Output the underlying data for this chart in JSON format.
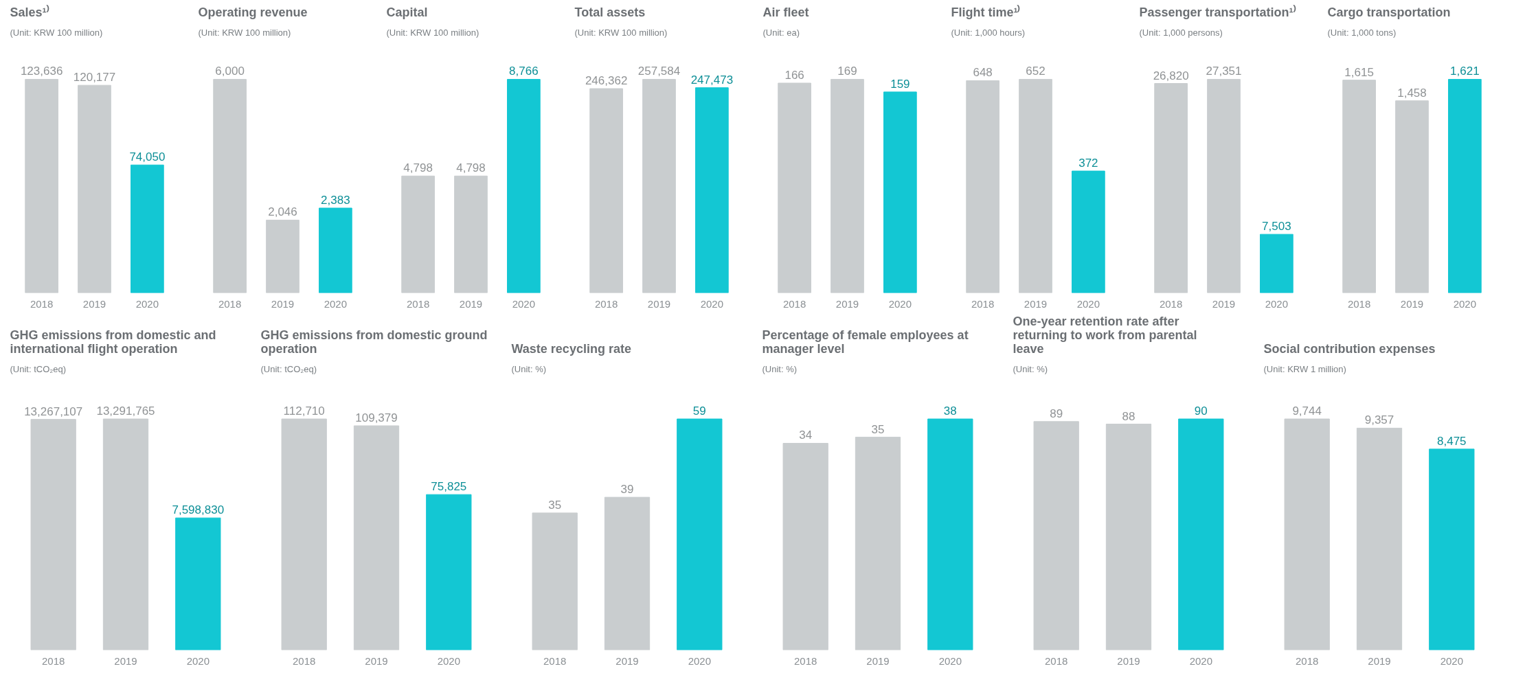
{
  "chart_data": [
    {
      "type": "bar",
      "title": "Sales¹⁾",
      "subtitle": "(Unit: KRW 100 million)",
      "categories": [
        "2018",
        "2019",
        "2020"
      ],
      "values": [
        123636,
        120177,
        74050
      ],
      "colors": [
        "#c9cdcf",
        "#c9cdcf",
        "#13c7d3"
      ],
      "value_labels": [
        "123,636",
        "120,177",
        "74,050"
      ]
    },
    {
      "type": "bar",
      "title": "Operating revenue",
      "subtitle": "(Unit: KRW 100 million)",
      "categories": [
        "2018",
        "2019",
        "2020"
      ],
      "values": [
        6000,
        2046,
        2383
      ],
      "colors": [
        "#c9cdcf",
        "#c9cdcf",
        "#13c7d3"
      ],
      "value_labels": [
        "6,000",
        "2,046",
        "2,383"
      ]
    },
    {
      "type": "bar",
      "title": "Capital",
      "subtitle": "(Unit: KRW 100 million)",
      "categories": [
        "2018",
        "2019",
        "2020"
      ],
      "values": [
        4798,
        4798,
        8766
      ],
      "colors": [
        "#c9cdcf",
        "#c9cdcf",
        "#13c7d3"
      ],
      "value_labels": [
        "4,798",
        "4,798",
        "8,766"
      ]
    },
    {
      "type": "bar",
      "title": "Total assets",
      "subtitle": "(Unit: KRW 100 million)",
      "categories": [
        "2018",
        "2019",
        "2020"
      ],
      "values": [
        246362,
        257584,
        247473
      ],
      "colors": [
        "#c9cdcf",
        "#c9cdcf",
        "#13c7d3"
      ],
      "value_labels": [
        "246,362",
        "257,584",
        "247,473"
      ]
    },
    {
      "type": "bar",
      "title": "Air fleet",
      "subtitle": "(Unit: ea)",
      "categories": [
        "2018",
        "2019",
        "2020"
      ],
      "values": [
        166,
        169,
        159
      ],
      "colors": [
        "#c9cdcf",
        "#c9cdcf",
        "#13c7d3"
      ],
      "value_labels": [
        "166",
        "169",
        "159"
      ]
    },
    {
      "type": "bar",
      "title": "Flight time¹⁾",
      "subtitle": "(Unit: 1,000 hours)",
      "categories": [
        "2018",
        "2019",
        "2020"
      ],
      "values": [
        648,
        652,
        372
      ],
      "colors": [
        "#c9cdcf",
        "#c9cdcf",
        "#13c7d3"
      ],
      "value_labels": [
        "648",
        "652",
        "372"
      ]
    },
    {
      "type": "bar",
      "title": "Passenger transportation¹⁾",
      "subtitle": "(Unit: 1,000 persons)",
      "categories": [
        "2018",
        "2019",
        "2020"
      ],
      "values": [
        26820,
        27351,
        7503
      ],
      "colors": [
        "#c9cdcf",
        "#c9cdcf",
        "#13c7d3"
      ],
      "value_labels": [
        "26,820",
        "27,351",
        "7,503"
      ]
    },
    {
      "type": "bar",
      "title": "Cargo transportation",
      "subtitle": "(Unit: 1,000 tons)",
      "categories": [
        "2018",
        "2019",
        "2020"
      ],
      "values": [
        1615,
        1458,
        1621
      ],
      "colors": [
        "#c9cdcf",
        "#c9cdcf",
        "#13c7d3"
      ],
      "value_labels": [
        "1,615",
        "1,458",
        "1,621"
      ]
    },
    {
      "type": "bar",
      "title": "GHG emissions from domestic and international flight operation",
      "subtitle": "(Unit: tCO₂eq)",
      "categories": [
        "2018",
        "2019",
        "2020"
      ],
      "values": [
        13267107,
        13291765,
        7598830
      ],
      "colors": [
        "#c9cdcf",
        "#c9cdcf",
        "#13c7d3"
      ],
      "value_labels": [
        "13,267,107",
        "13,291,765",
        "7,598,830"
      ]
    },
    {
      "type": "bar",
      "title": "GHG emissions from domestic ground operation",
      "subtitle": "(Unit: tCO₂eq)",
      "categories": [
        "2018",
        "2019",
        "2020"
      ],
      "values": [
        112710,
        109379,
        75825
      ],
      "colors": [
        "#c9cdcf",
        "#c9cdcf",
        "#13c7d3"
      ],
      "value_labels": [
        "112,710",
        "109,379",
        "75,825"
      ]
    },
    {
      "type": "bar",
      "title": "Waste recycling rate",
      "subtitle": "(Unit: %)",
      "categories": [
        "2018",
        "2019",
        "2020"
      ],
      "values": [
        35,
        39,
        59
      ],
      "colors": [
        "#c9cdcf",
        "#c9cdcf",
        "#13c7d3"
      ],
      "value_labels": [
        "35",
        "39",
        "59"
      ]
    },
    {
      "type": "bar",
      "title": "Percentage of female employees at manager level",
      "subtitle": "(Unit: %)",
      "categories": [
        "2018",
        "2019",
        "2020"
      ],
      "values": [
        34,
        35,
        38
      ],
      "colors": [
        "#c9cdcf",
        "#c9cdcf",
        "#13c7d3"
      ],
      "value_labels": [
        "34",
        "35",
        "38"
      ]
    },
    {
      "type": "bar",
      "title": "One-year retention rate after returning to work from parental leave",
      "subtitle": "(Unit: %)",
      "categories": [
        "2018",
        "2019",
        "2020"
      ],
      "values": [
        89,
        88,
        90
      ],
      "colors": [
        "#c9cdcf",
        "#c9cdcf",
        "#13c7d3"
      ],
      "value_labels": [
        "89",
        "88",
        "90"
      ]
    },
    {
      "type": "bar",
      "title": "Social contribution expenses",
      "subtitle": "(Unit: KRW 1 million)",
      "categories": [
        "2018",
        "2019",
        "2020"
      ],
      "values": [
        9744,
        9357,
        8475
      ],
      "colors": [
        "#c9cdcf",
        "#c9cdcf",
        "#13c7d3"
      ],
      "value_labels": [
        "9,744",
        "9,357",
        "8,475"
      ]
    }
  ]
}
